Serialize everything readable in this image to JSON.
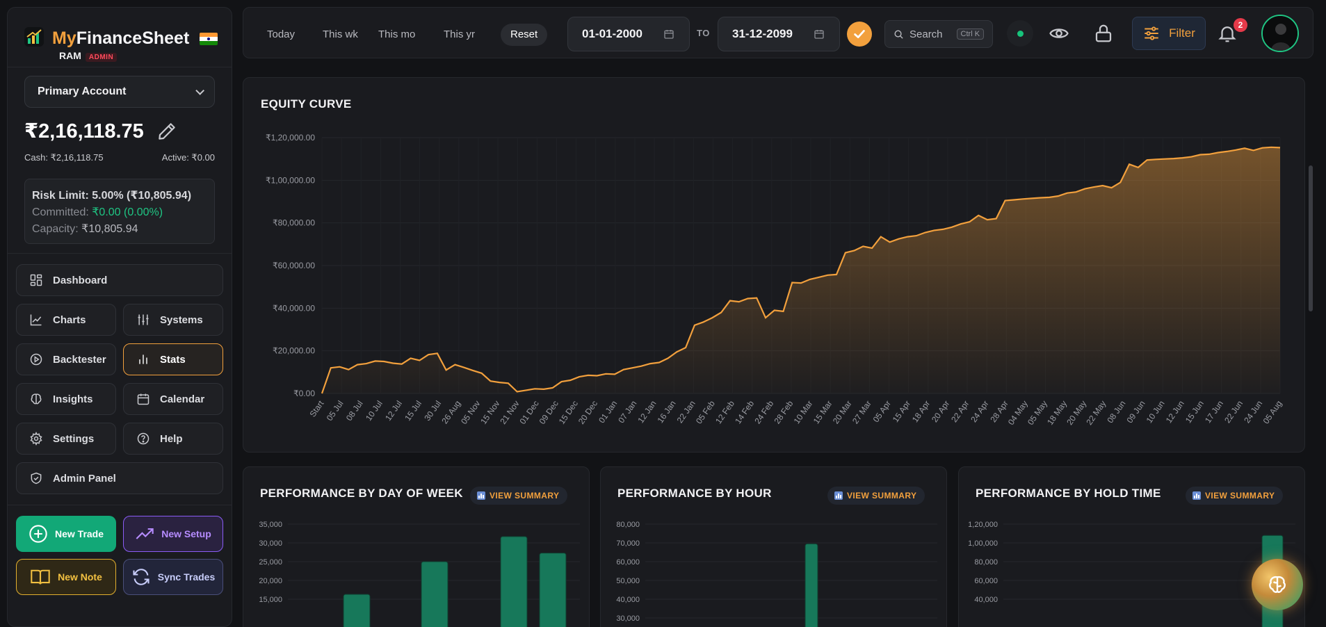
{
  "brand": {
    "title_my": "My",
    "title_rest": "FinanceSheet",
    "user": "RAM",
    "role_badge": "ADMIN"
  },
  "account": {
    "selected": "Primary Account",
    "balance": "₹2,16,118.75",
    "cash": "Cash: ₹2,16,118.75",
    "active": "Active: ₹0.00",
    "risk_limit": "Risk Limit: 5.00% (₹10,805.94)",
    "committed_label": "Committed: ",
    "committed_value": "₹0.00 (0.00%)",
    "capacity_label": "Capacity: ",
    "capacity_value": "₹10,805.94"
  },
  "nav": {
    "dashboard": "Dashboard",
    "charts": "Charts",
    "systems": "Systems",
    "backtester": "Backtester",
    "stats": "Stats",
    "insights": "Insights",
    "calendar": "Calendar",
    "settings": "Settings",
    "help": "Help",
    "admin": "Admin Panel",
    "active_item": "Stats"
  },
  "actions": {
    "new_trade": "New Trade",
    "new_setup": "New Setup",
    "new_note": "New Note",
    "sync_trades": "Sync Trades"
  },
  "topbar": {
    "quick_ranges": [
      "Today",
      "This wk",
      "This mo",
      "This yr"
    ],
    "reset": "Reset",
    "date_from": "01-01-2000",
    "to_label": "TO",
    "date_to": "31-12-2099",
    "search_label": "Search",
    "search_shortcut": "Ctrl K",
    "filter_label": "Filter",
    "notification_count": "2"
  },
  "colors": {
    "accent": "#f2a03d",
    "positive": "#1fc583",
    "bar": "#17785a",
    "background": "#121316"
  },
  "equity": {
    "title": "EQUITY CURVE",
    "chart_data": {
      "type": "area",
      "title": "EQUITY CURVE",
      "ylim": [
        0,
        120000
      ],
      "y_ticks": [
        "₹0.00",
        "₹20,000.00",
        "₹40,000.00",
        "₹60,000.00",
        "₹80,000.00",
        "₹1,00,000.00",
        "₹1,20,000.00"
      ],
      "x_ticks": [
        "Start",
        "05 Jul",
        "08 Jul",
        "10 Jul",
        "12 Jul",
        "15 Jul",
        "30 Jul",
        "26 Aug",
        "05 Nov",
        "15 Nov",
        "21 Nov",
        "01 Dec",
        "09 Dec",
        "15 Dec",
        "20 Dec",
        "01 Jan",
        "07 Jan",
        "12 Jan",
        "16 Jan",
        "22 Jan",
        "05 Feb",
        "12 Feb",
        "14 Feb",
        "24 Feb",
        "28 Feb",
        "10 Mar",
        "15 Mar",
        "20 Mar",
        "27 Mar",
        "05 Apr",
        "15 Apr",
        "18 Apr",
        "20 Apr",
        "22 Apr",
        "24 Apr",
        "28 Apr",
        "04 May",
        "05 May",
        "18 May",
        "20 May",
        "22 May",
        "08 Jun",
        "09 Jun",
        "10 Jun",
        "12 Jun",
        "15 Jun",
        "17 Jun",
        "22 Jun",
        "24 Jun",
        "05 Aug"
      ],
      "values": [
        0,
        12000,
        12500,
        11200,
        13500,
        14000,
        15200,
        15000,
        14200,
        13800,
        16500,
        15500,
        18200,
        18800,
        11000,
        13500,
        12200,
        10800,
        9500,
        5800,
        5200,
        4800,
        800,
        1500,
        2200,
        2000,
        2600,
        5500,
        6200,
        7800,
        8500,
        8300,
        9200,
        9000,
        11200,
        12000,
        12800,
        14000,
        14500,
        16500,
        19500,
        21500,
        32000,
        33500,
        35500,
        38000,
        43500,
        43000,
        44500,
        44800,
        35500,
        39000,
        38500,
        52000,
        51800,
        53500,
        54500,
        55500,
        55800,
        66000,
        67000,
        69000,
        68200,
        73500,
        71000,
        72500,
        73500,
        74000,
        75500,
        76500,
        77000,
        78000,
        79500,
        80500,
        83500,
        81500,
        82000,
        90500,
        90800,
        91200,
        91500,
        91800,
        92000,
        92600,
        94000,
        94500,
        96000,
        96800,
        97500,
        96500,
        99000,
        107500,
        106000,
        109500,
        109800,
        110000,
        110200,
        110500,
        111000,
        112000,
        112200,
        113000,
        113500,
        114200,
        115000,
        114000,
        115200,
        115500,
        115300
      ]
    }
  },
  "cards": {
    "dow": {
      "title": "PERFORMANCE BY DAY OF WEEK",
      "view_summary": "VIEW SUMMARY",
      "chart_data": {
        "type": "bar",
        "y_ticks": [
          "15,000",
          "20,000",
          "25,000",
          "30,000",
          "35,000"
        ],
        "ylim": [
          15000,
          35000
        ],
        "values": [
          16300,
          25000,
          31700,
          27300
        ]
      }
    },
    "hour": {
      "title": "PERFORMANCE BY HOUR",
      "view_summary": "VIEW SUMMARY",
      "chart_data": {
        "type": "bar",
        "y_ticks": [
          "30,000",
          "40,000",
          "50,000",
          "60,000",
          "70,000",
          "80,000"
        ],
        "ylim": [
          30000,
          80000
        ],
        "values": [
          69500
        ]
      }
    },
    "hold": {
      "title": "PERFORMANCE BY HOLD TIME",
      "view_summary": "VIEW SUMMARY",
      "chart_data": {
        "type": "bar",
        "y_ticks": [
          "40,000",
          "60,000",
          "80,000",
          "1,00,000",
          "1,20,000"
        ],
        "ylim": [
          40000,
          120000
        ],
        "values": [
          108000
        ]
      }
    }
  }
}
